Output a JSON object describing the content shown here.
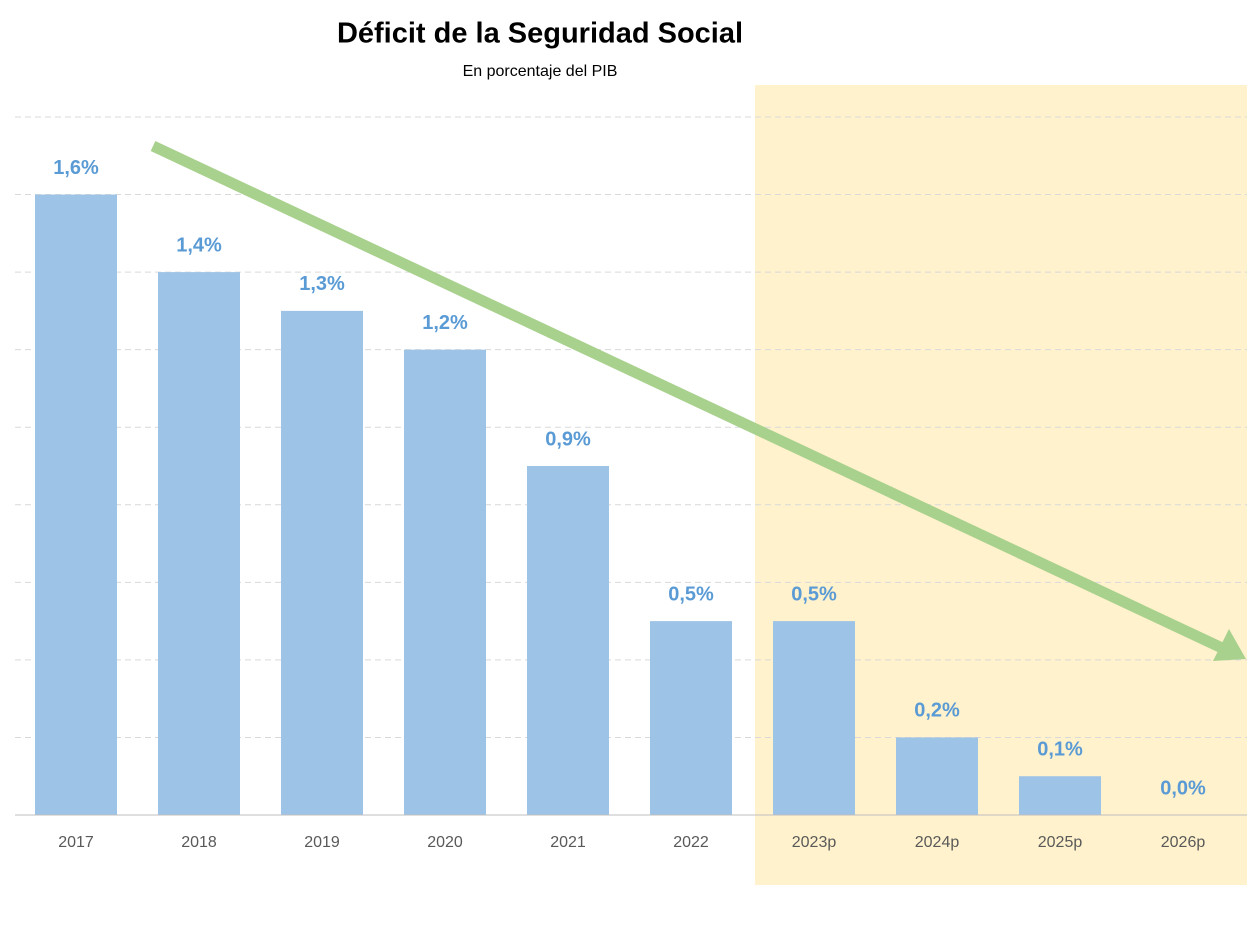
{
  "chart_data": {
    "type": "bar",
    "title": "Déficit de la Seguridad Social",
    "subtitle": "En porcentaje del PIB",
    "categories": [
      "2017",
      "2018",
      "2019",
      "2020",
      "2021",
      "2022",
      "2023p",
      "2024p",
      "2025p",
      "2026p"
    ],
    "values": [
      1.6,
      1.4,
      1.3,
      1.2,
      0.9,
      0.5,
      0.5,
      0.2,
      0.1,
      0.0
    ],
    "value_labels": [
      "1,6%",
      "1,4%",
      "1,3%",
      "1,2%",
      "0,9%",
      "0,5%",
      "0,5%",
      "0,2%",
      "0,1%",
      "0,0%"
    ],
    "color": "#9dc3e6",
    "label_color": "#5b9bd5",
    "ylim": [
      0,
      1.8
    ],
    "yticks": [
      0,
      0.2,
      0.4,
      0.6,
      0.8,
      1.0,
      1.2,
      1.4,
      1.6,
      1.8
    ],
    "grid": true
  }
}
